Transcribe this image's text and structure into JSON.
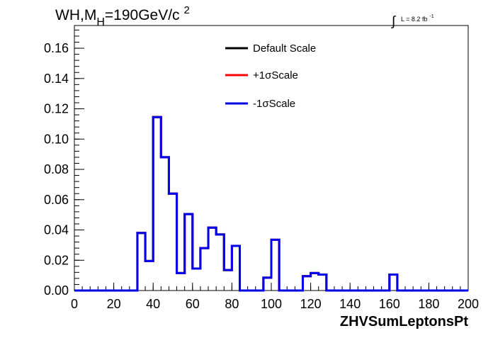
{
  "chart_data": {
    "type": "line",
    "title_main": "WH,M",
    "title_sub": "H",
    "title_rest": "=190GeV/c",
    "title_sup": "2",
    "lumi_integral": "∫",
    "lumi_text": "L = 8.2 fb",
    "lumi_sup": "-1",
    "xlabel": "ZHVSumLeptonsPt",
    "ylabel": "",
    "xlim": [
      0,
      200
    ],
    "ylim": [
      0,
      0.175
    ],
    "x_ticks": [
      0,
      20,
      40,
      60,
      80,
      100,
      120,
      140,
      160,
      180,
      200
    ],
    "y_ticks": [
      "0.00",
      "0.02",
      "0.04",
      "0.06",
      "0.08",
      "0.10",
      "0.12",
      "0.14",
      "0.16"
    ],
    "y_tick_values": [
      0,
      0.02,
      0.04,
      0.06,
      0.08,
      0.1,
      0.12,
      0.14,
      0.16
    ],
    "grid": false,
    "legend_position": "top-right",
    "bin_edges": [
      0,
      4,
      8,
      12,
      16,
      20,
      24,
      28,
      32,
      36,
      40,
      44,
      48,
      52,
      56,
      60,
      64,
      68,
      72,
      76,
      80,
      84,
      88,
      92,
      96,
      100,
      104,
      108,
      112,
      116,
      120,
      124,
      128,
      132,
      136,
      140,
      144,
      148,
      152,
      156,
      160,
      164,
      168,
      172,
      176,
      180,
      184,
      188,
      192,
      196,
      200
    ],
    "series": [
      {
        "name": "Default Scale",
        "color": "#000000",
        "values": [
          0,
          0,
          0,
          0,
          0,
          0,
          0,
          0,
          0.038,
          0.0195,
          0.1145,
          0.088,
          0.064,
          0.0115,
          0.0505,
          0.0145,
          0.028,
          0.0415,
          0.037,
          0.0135,
          0.0295,
          0,
          0,
          0,
          0.0085,
          0.0335,
          0,
          0,
          0,
          0.0095,
          0.0115,
          0.0105,
          0,
          0,
          0,
          0,
          0,
          0,
          0,
          0,
          0.0105,
          0,
          0,
          0,
          0,
          0,
          0,
          0,
          0,
          0
        ]
      },
      {
        "name": "+1σScale",
        "color": "#ff0000",
        "values": [
          0,
          0,
          0,
          0,
          0,
          0,
          0,
          0,
          0.038,
          0.0195,
          0.1145,
          0.088,
          0.064,
          0.0115,
          0.0505,
          0.0145,
          0.028,
          0.0415,
          0.037,
          0.0135,
          0.0295,
          0,
          0,
          0,
          0.0085,
          0.0335,
          0,
          0,
          0,
          0.0095,
          0.0115,
          0.0105,
          0,
          0,
          0,
          0,
          0,
          0,
          0,
          0,
          0.0105,
          0,
          0,
          0,
          0,
          0,
          0,
          0,
          0,
          0
        ]
      },
      {
        "name": "-1σScale",
        "color": "#0000ee",
        "values": [
          0,
          0,
          0,
          0,
          0,
          0,
          0,
          0,
          0.038,
          0.0195,
          0.1145,
          0.088,
          0.064,
          0.0115,
          0.0505,
          0.0145,
          0.028,
          0.0415,
          0.037,
          0.0135,
          0.0295,
          0,
          0,
          0,
          0.0085,
          0.0335,
          0,
          0,
          0,
          0.0095,
          0.0115,
          0.0105,
          0,
          0,
          0,
          0,
          0,
          0,
          0,
          0,
          0.0105,
          0,
          0,
          0,
          0,
          0,
          0,
          0,
          0,
          0
        ]
      }
    ]
  }
}
